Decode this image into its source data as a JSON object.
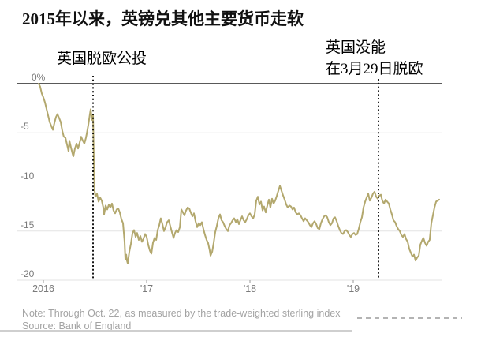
{
  "page": {
    "title": "2015年以来，英镑兑其他主要货币走软"
  },
  "annotations": {
    "referendum": {
      "label": "英国脱欧公投"
    },
    "march29": {
      "line1": "英国没能",
      "line2": "在3月29日脱欧"
    }
  },
  "footer": {
    "note": "Note: Through Oct. 22, as measured by the trade-weighted sterling index",
    "source": "Source: Bank of England"
  },
  "colors": {
    "series_line": "#b3a86e",
    "event_line": "#000000",
    "zero_axis": "#222222",
    "gridline": "#e3e3e3",
    "tick_mark": "#999999",
    "tick_text": "#7a7a7a",
    "note_text": "#a3a3a3",
    "title_text": "#111111"
  },
  "chart_data": {
    "type": "line",
    "title": "2015年以来，英镑兑其他主要货币走软",
    "unit": "%",
    "grid": true,
    "y_range": [
      -20,
      0
    ],
    "x_range": [
      2015.95,
      2019.84
    ],
    "y_ticks": [
      {
        "label": "0%",
        "value": 0
      },
      {
        "label": "-5",
        "value": -5
      },
      {
        "label": "-10",
        "value": -10
      },
      {
        "label": "-15",
        "value": -15
      },
      {
        "label": "-20",
        "value": -20
      }
    ],
    "x_ticks": [
      {
        "label": "2016",
        "year": 2016
      },
      {
        "label": "'17",
        "year": 2017
      },
      {
        "label": "'18",
        "year": 2018
      },
      {
        "label": "'19",
        "year": 2019
      }
    ],
    "events": [
      {
        "label": "英国脱欧公投",
        "x": 2016.481
      },
      {
        "label": "英国没能 在3月29日脱欧",
        "x": 2019.244
      }
    ],
    "points": [
      [
        2015.954,
        0
      ],
      [
        2015.969,
        -0.3
      ],
      [
        2015.985,
        -1.0
      ],
      [
        2016.0,
        -1.4
      ],
      [
        2016.015,
        -1.9
      ],
      [
        2016.038,
        -2.9
      ],
      [
        2016.061,
        -3.9
      ],
      [
        2016.076,
        -4.3
      ],
      [
        2016.092,
        -4.7
      ],
      [
        2016.107,
        -4.0
      ],
      [
        2016.122,
        -3.4
      ],
      [
        2016.137,
        -3.1
      ],
      [
        2016.153,
        -3.5
      ],
      [
        2016.168,
        -3.9
      ],
      [
        2016.183,
        -4.8
      ],
      [
        2016.198,
        -5.4
      ],
      [
        2016.214,
        -5.5
      ],
      [
        2016.229,
        -6.2
      ],
      [
        2016.244,
        -6.9
      ],
      [
        2016.252,
        -5.8
      ],
      [
        2016.267,
        -6.5
      ],
      [
        2016.282,
        -7.1
      ],
      [
        2016.29,
        -7.4
      ],
      [
        2016.305,
        -6.6
      ],
      [
        2016.321,
        -6.1
      ],
      [
        2016.336,
        -6.6
      ],
      [
        2016.351,
        -6.0
      ],
      [
        2016.366,
        -5.4
      ],
      [
        2016.382,
        -5.8
      ],
      [
        2016.397,
        -6.1
      ],
      [
        2016.412,
        -5.5
      ],
      [
        2016.42,
        -5.1
      ],
      [
        2016.435,
        -4.2
      ],
      [
        2016.45,
        -3.1
      ],
      [
        2016.458,
        -2.6
      ],
      [
        2016.466,
        -3.3
      ],
      [
        2016.473,
        -3.7
      ],
      [
        2016.481,
        -3.2
      ],
      [
        2016.489,
        -8.0
      ],
      [
        2016.496,
        -10.9
      ],
      [
        2016.504,
        -11.5
      ],
      [
        2016.519,
        -11.2
      ],
      [
        2016.534,
        -12.0
      ],
      [
        2016.55,
        -11.6
      ],
      [
        2016.565,
        -11.9
      ],
      [
        2016.58,
        -12.6
      ],
      [
        2016.588,
        -13.3
      ],
      [
        2016.603,
        -12.4
      ],
      [
        2016.618,
        -12.8
      ],
      [
        2016.634,
        -12.3
      ],
      [
        2016.649,
        -12.6
      ],
      [
        2016.664,
        -12.2
      ],
      [
        2016.679,
        -12.9
      ],
      [
        2016.695,
        -13.2
      ],
      [
        2016.71,
        -12.8
      ],
      [
        2016.725,
        -12.7
      ],
      [
        2016.74,
        -13.1
      ],
      [
        2016.756,
        -13.8
      ],
      [
        2016.771,
        -14.2
      ],
      [
        2016.786,
        -16.1
      ],
      [
        2016.794,
        -17.9
      ],
      [
        2016.802,
        -17.4
      ],
      [
        2016.809,
        -18.0
      ],
      [
        2016.817,
        -18.3
      ],
      [
        2016.832,
        -17.1
      ],
      [
        2016.847,
        -16.3
      ],
      [
        2016.863,
        -15.2
      ],
      [
        2016.878,
        -14.9
      ],
      [
        2016.893,
        -15.6
      ],
      [
        2016.908,
        -15.2
      ],
      [
        2016.924,
        -15.9
      ],
      [
        2016.939,
        -15.5
      ],
      [
        2016.954,
        -16.1
      ],
      [
        2016.969,
        -15.8
      ],
      [
        2016.985,
        -15.3
      ],
      [
        2017.0,
        -15.6
      ],
      [
        2017.015,
        -16.4
      ],
      [
        2017.031,
        -17.0
      ],
      [
        2017.046,
        -17.3
      ],
      [
        2017.061,
        -16.2
      ],
      [
        2017.076,
        -15.7
      ],
      [
        2017.092,
        -15.9
      ],
      [
        2017.107,
        -14.9
      ],
      [
        2017.122,
        -14.4
      ],
      [
        2017.137,
        -13.7
      ],
      [
        2017.153,
        -14.3
      ],
      [
        2017.168,
        -15.0
      ],
      [
        2017.183,
        -14.6
      ],
      [
        2017.198,
        -14.1
      ],
      [
        2017.214,
        -13.9
      ],
      [
        2017.229,
        -14.5
      ],
      [
        2017.244,
        -15.1
      ],
      [
        2017.26,
        -15.7
      ],
      [
        2017.275,
        -15.2
      ],
      [
        2017.29,
        -14.9
      ],
      [
        2017.305,
        -15.1
      ],
      [
        2017.321,
        -14.6
      ],
      [
        2017.336,
        -12.8
      ],
      [
        2017.351,
        -13.1
      ],
      [
        2017.366,
        -13.4
      ],
      [
        2017.382,
        -12.9
      ],
      [
        2017.397,
        -12.6
      ],
      [
        2017.412,
        -12.7
      ],
      [
        2017.427,
        -13.1
      ],
      [
        2017.443,
        -13.5
      ],
      [
        2017.458,
        -13.2
      ],
      [
        2017.473,
        -14.0
      ],
      [
        2017.489,
        -14.6
      ],
      [
        2017.504,
        -14.2
      ],
      [
        2017.519,
        -14.4
      ],
      [
        2017.534,
        -14.1
      ],
      [
        2017.55,
        -14.8
      ],
      [
        2017.565,
        -15.4
      ],
      [
        2017.58,
        -15.9
      ],
      [
        2017.595,
        -16.2
      ],
      [
        2017.611,
        -17.0
      ],
      [
        2017.618,
        -17.5
      ],
      [
        2017.634,
        -17.1
      ],
      [
        2017.649,
        -16.2
      ],
      [
        2017.664,
        -15.1
      ],
      [
        2017.679,
        -14.5
      ],
      [
        2017.695,
        -13.7
      ],
      [
        2017.71,
        -13.3
      ],
      [
        2017.725,
        -13.9
      ],
      [
        2017.74,
        -14.1
      ],
      [
        2017.756,
        -14.5
      ],
      [
        2017.771,
        -14.8
      ],
      [
        2017.786,
        -15.0
      ],
      [
        2017.802,
        -14.4
      ],
      [
        2017.817,
        -14.2
      ],
      [
        2017.832,
        -13.9
      ],
      [
        2017.847,
        -13.7
      ],
      [
        2017.863,
        -14.1
      ],
      [
        2017.878,
        -13.8
      ],
      [
        2017.893,
        -14.3
      ],
      [
        2017.908,
        -13.9
      ],
      [
        2017.924,
        -13.5
      ],
      [
        2017.939,
        -13.9
      ],
      [
        2017.954,
        -14.1
      ],
      [
        2017.969,
        -13.8
      ],
      [
        2017.985,
        -13.4
      ],
      [
        2018.0,
        -13.2
      ],
      [
        2018.015,
        -13.5
      ],
      [
        2018.031,
        -13.7
      ],
      [
        2018.046,
        -13.3
      ],
      [
        2018.061,
        -11.9
      ],
      [
        2018.076,
        -11.5
      ],
      [
        2018.092,
        -12.3
      ],
      [
        2018.107,
        -12.0
      ],
      [
        2018.122,
        -12.9
      ],
      [
        2018.137,
        -12.5
      ],
      [
        2018.153,
        -13.1
      ],
      [
        2018.168,
        -12.4
      ],
      [
        2018.183,
        -11.8
      ],
      [
        2018.198,
        -12.6
      ],
      [
        2018.214,
        -11.7
      ],
      [
        2018.229,
        -12.2
      ],
      [
        2018.244,
        -11.9
      ],
      [
        2018.26,
        -11.4
      ],
      [
        2018.275,
        -10.9
      ],
      [
        2018.29,
        -10.4
      ],
      [
        2018.305,
        -10.9
      ],
      [
        2018.321,
        -11.4
      ],
      [
        2018.336,
        -11.8
      ],
      [
        2018.351,
        -12.3
      ],
      [
        2018.366,
        -12.6
      ],
      [
        2018.382,
        -12.4
      ],
      [
        2018.397,
        -12.5
      ],
      [
        2018.412,
        -12.8
      ],
      [
        2018.427,
        -12.6
      ],
      [
        2018.443,
        -13.1
      ],
      [
        2018.458,
        -13.3
      ],
      [
        2018.473,
        -13.2
      ],
      [
        2018.489,
        -13.4
      ],
      [
        2018.504,
        -13.7
      ],
      [
        2018.519,
        -14.0
      ],
      [
        2018.534,
        -13.7
      ],
      [
        2018.55,
        -13.9
      ],
      [
        2018.565,
        -14.1
      ],
      [
        2018.58,
        -14.4
      ],
      [
        2018.595,
        -14.6
      ],
      [
        2018.611,
        -14.2
      ],
      [
        2018.626,
        -14.0
      ],
      [
        2018.641,
        -14.3
      ],
      [
        2018.656,
        -14.7
      ],
      [
        2018.672,
        -14.8
      ],
      [
        2018.687,
        -14.2
      ],
      [
        2018.702,
        -13.8
      ],
      [
        2018.718,
        -13.5
      ],
      [
        2018.733,
        -13.4
      ],
      [
        2018.748,
        -13.6
      ],
      [
        2018.763,
        -14.1
      ],
      [
        2018.779,
        -14.4
      ],
      [
        2018.794,
        -14.2
      ],
      [
        2018.809,
        -13.7
      ],
      [
        2018.824,
        -13.6
      ],
      [
        2018.84,
        -14.0
      ],
      [
        2018.855,
        -14.5
      ],
      [
        2018.87,
        -14.9
      ],
      [
        2018.885,
        -15.2
      ],
      [
        2018.901,
        -15.3
      ],
      [
        2018.916,
        -15.0
      ],
      [
        2018.931,
        -14.9
      ],
      [
        2018.947,
        -15.1
      ],
      [
        2018.962,
        -15.4
      ],
      [
        2018.977,
        -15.6
      ],
      [
        2018.992,
        -15.3
      ],
      [
        2019.008,
        -15.2
      ],
      [
        2019.023,
        -15.4
      ],
      [
        2019.038,
        -15.3
      ],
      [
        2019.053,
        -14.8
      ],
      [
        2019.069,
        -14.1
      ],
      [
        2019.084,
        -13.6
      ],
      [
        2019.099,
        -12.6
      ],
      [
        2019.115,
        -12.0
      ],
      [
        2019.13,
        -11.6
      ],
      [
        2019.145,
        -11.2
      ],
      [
        2019.16,
        -11.9
      ],
      [
        2019.176,
        -11.6
      ],
      [
        2019.191,
        -11.2
      ],
      [
        2019.206,
        -11.0
      ],
      [
        2019.221,
        -11.5
      ],
      [
        2019.237,
        -11.7
      ],
      [
        2019.252,
        -11.4
      ],
      [
        2019.267,
        -11.3
      ],
      [
        2019.282,
        -11.9
      ],
      [
        2019.298,
        -12.2
      ],
      [
        2019.313,
        -11.8
      ],
      [
        2019.328,
        -12.0
      ],
      [
        2019.344,
        -12.2
      ],
      [
        2019.359,
        -12.8
      ],
      [
        2019.374,
        -13.3
      ],
      [
        2019.389,
        -13.9
      ],
      [
        2019.405,
        -14.1
      ],
      [
        2019.42,
        -14.5
      ],
      [
        2019.435,
        -14.8
      ],
      [
        2019.45,
        -15.0
      ],
      [
        2019.466,
        -15.4
      ],
      [
        2019.481,
        -15.6
      ],
      [
        2019.496,
        -15.3
      ],
      [
        2019.511,
        -15.8
      ],
      [
        2019.527,
        -16.1
      ],
      [
        2019.542,
        -16.8
      ],
      [
        2019.557,
        -17.2
      ],
      [
        2019.573,
        -17.6
      ],
      [
        2019.588,
        -17.4
      ],
      [
        2019.603,
        -18.0
      ],
      [
        2019.618,
        -17.7
      ],
      [
        2019.634,
        -17.5
      ],
      [
        2019.649,
        -16.4
      ],
      [
        2019.664,
        -16.0
      ],
      [
        2019.679,
        -15.7
      ],
      [
        2019.695,
        -16.2
      ],
      [
        2019.71,
        -16.5
      ],
      [
        2019.725,
        -16.1
      ],
      [
        2019.74,
        -15.9
      ],
      [
        2019.756,
        -14.2
      ],
      [
        2019.771,
        -13.4
      ],
      [
        2019.786,
        -12.6
      ],
      [
        2019.802,
        -12.0
      ],
      [
        2019.817,
        -11.9
      ],
      [
        2019.832,
        -11.8
      ]
    ]
  }
}
